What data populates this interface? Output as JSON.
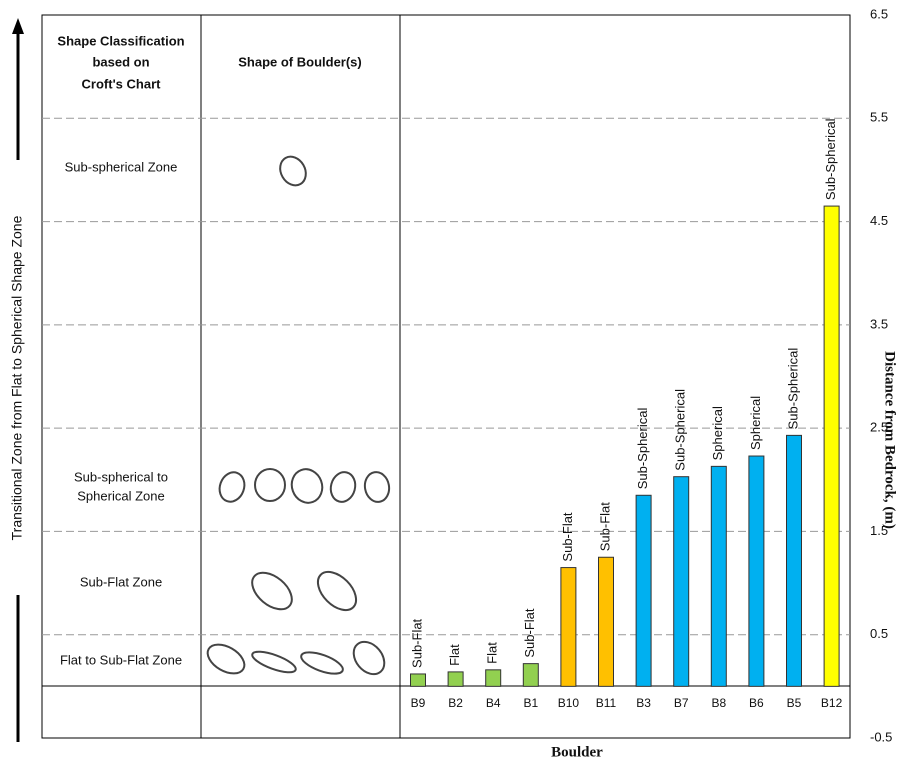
{
  "chart_data": {
    "type": "bar",
    "side_label": "Transitional Zone from Flat to Spherical Shape Zone",
    "y_label": "Distance from Bedrock, (m)",
    "x_label": "Boulder",
    "table": {
      "header_classification": [
        "Shape Classification",
        "based on",
        "Croft's Chart"
      ],
      "header_shape": "Shape of Boulder(s)",
      "zones": [
        {
          "lines": [
            "Sub-spherical Zone"
          ]
        },
        {
          "lines": [
            "Sub-spherical to",
            "Spherical Zone"
          ]
        },
        {
          "lines": [
            "Sub-Flat Zone"
          ]
        },
        {
          "lines": [
            "Flat to Sub-Flat Zone"
          ]
        }
      ]
    },
    "categories": [
      "B9",
      "B2",
      "B4",
      "B1",
      "B10",
      "B11",
      "B3",
      "B7",
      "B8",
      "B6",
      "B5",
      "B12"
    ],
    "values": [
      0.12,
      0.14,
      0.16,
      0.22,
      1.15,
      1.25,
      1.85,
      2.03,
      2.13,
      2.23,
      2.43,
      4.65
    ],
    "bar_labels": [
      "Sub-Flat",
      "Flat",
      "Flat",
      "Sub-Flat",
      "Sub-Flat",
      "Sub-Flat",
      "Sub-Spherical",
      "Sub-Spherical",
      "Spherical",
      "Spherical",
      "Sub-Spherical",
      "Sub-Spherical"
    ],
    "colors": [
      "#92d050",
      "#92d050",
      "#92d050",
      "#92d050",
      "#ffc000",
      "#ffc000",
      "#00b0f0",
      "#00b0f0",
      "#00b0f0",
      "#00b0f0",
      "#00b0f0",
      "#ffff00"
    ],
    "ylim": [
      -0.5,
      6.5
    ],
    "yticks": [
      -0.5,
      0.5,
      1.5,
      2.5,
      3.5,
      4.5,
      5.5,
      6.5
    ],
    "grid": true
  }
}
